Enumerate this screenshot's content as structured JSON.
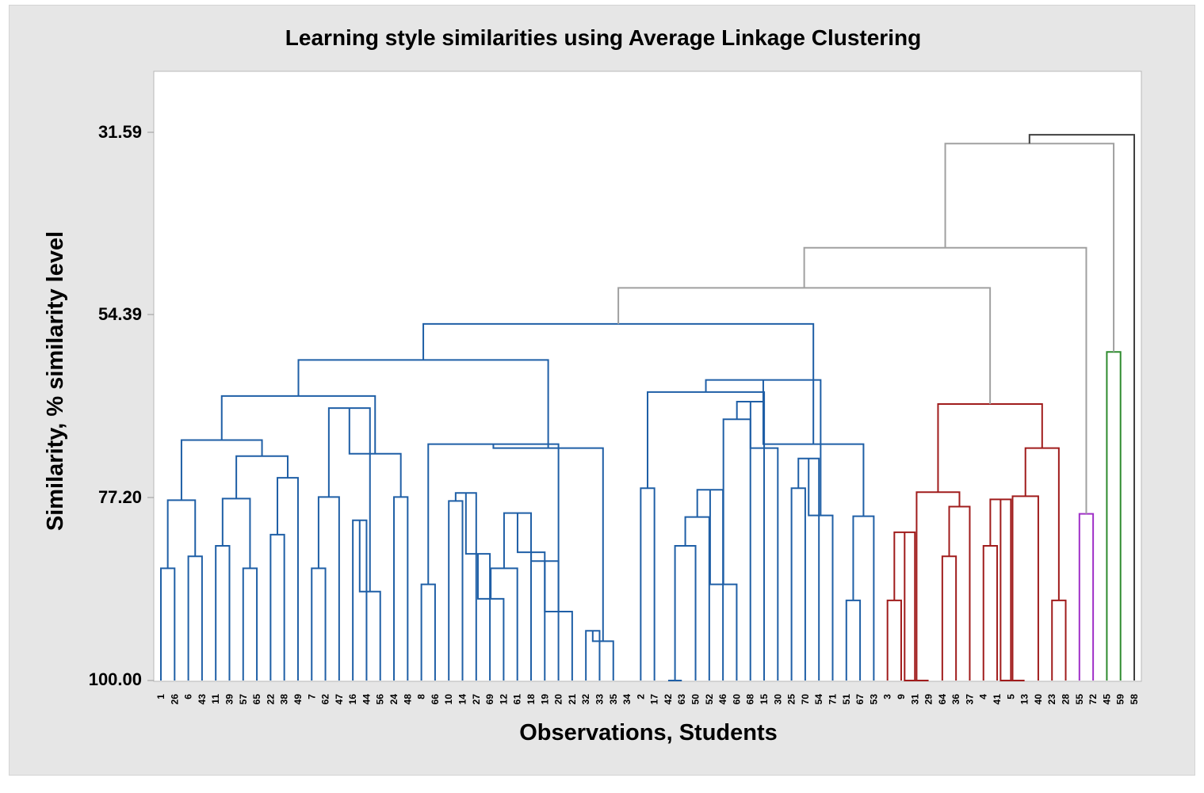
{
  "chart_data": {
    "type": "dendrogram",
    "title": "Learning style similarities using Average Linkage Clustering",
    "xlabel": "Observations, Students",
    "ylabel": "Similarity, % similarity level",
    "ylim": [
      100.0,
      31.59
    ],
    "yticks": [
      "31.59",
      "54.39",
      "77.20",
      "100.00"
    ],
    "leaves": [
      "1",
      "26",
      "6",
      "43",
      "11",
      "39",
      "57",
      "65",
      "22",
      "38",
      "49",
      "7",
      "62",
      "47",
      "16",
      "44",
      "56",
      "24",
      "48",
      "8",
      "66",
      "10",
      "14",
      "27",
      "69",
      "12",
      "61",
      "18",
      "19",
      "20",
      "21",
      "32",
      "33",
      "35",
      "34",
      "2",
      "17",
      "42",
      "63",
      "50",
      "52",
      "46",
      "60",
      "68",
      "15",
      "30",
      "25",
      "70",
      "54",
      "71",
      "51",
      "67",
      "53",
      "3",
      "9",
      "31",
      "29",
      "64",
      "36",
      "37",
      "4",
      "41",
      "5",
      "13",
      "40",
      "23",
      "28",
      "55",
      "72",
      "45",
      "59",
      "58"
    ],
    "colors": {
      "blue": "#1f5fa6",
      "red": "#a01c1c",
      "purple": "#a030c8",
      "green": "#2e8b2e",
      "gray": "#a0a0a0",
      "dark": "#404040"
    },
    "merges": [
      {
        "left": "1",
        "right": "26",
        "similarity": 86.0,
        "color": "blue"
      },
      {
        "left": "6",
        "right": "43",
        "similarity": 84.5,
        "color": "blue"
      },
      {
        "left": "11",
        "right": "39",
        "similarity": 83.2,
        "color": "blue"
      },
      {
        "left": "57",
        "right": "65",
        "similarity": 86.0,
        "color": "blue"
      },
      {
        "left": "22",
        "right": "38",
        "similarity": 81.8,
        "color": "blue"
      },
      {
        "left": "38",
        "right": "49",
        "similarity": 74.7,
        "color": "blue"
      },
      {
        "left": "7",
        "right": "62",
        "similarity": 86.0,
        "color": "blue"
      },
      {
        "left": "62",
        "right": "47",
        "similarity": 77.1,
        "color": "blue"
      },
      {
        "left": "16",
        "right": "44",
        "similarity": 80.0,
        "color": "blue"
      },
      {
        "left": "44",
        "right": "56",
        "similarity": 88.9,
        "color": "blue"
      },
      {
        "left": "24",
        "right": "48",
        "similarity": 77.1,
        "color": "blue"
      },
      {
        "left": "8",
        "right": "66",
        "similarity": 88.0,
        "color": "blue"
      },
      {
        "left": "10",
        "right": "14",
        "similarity": 77.6,
        "color": "blue"
      },
      {
        "left": "14",
        "right": "27",
        "similarity": 76.6,
        "color": "blue"
      },
      {
        "left": "27",
        "right": "69",
        "similarity": 84.2,
        "color": "blue"
      },
      {
        "left": "69",
        "right": "12",
        "similarity": 89.8,
        "color": "blue"
      },
      {
        "left": "12",
        "right": "61",
        "similarity": 86.0,
        "color": "blue"
      },
      {
        "left": "61",
        "right": "18",
        "similarity": 79.1,
        "color": "blue"
      },
      {
        "left": "18",
        "right": "19",
        "similarity": 84.0,
        "color": "blue"
      },
      {
        "left": "19",
        "right": "20",
        "similarity": 85.1,
        "color": "blue"
      },
      {
        "left": "20",
        "right": "21",
        "similarity": 91.4,
        "color": "blue"
      },
      {
        "left": "32",
        "right": "33",
        "similarity": 93.8,
        "color": "blue"
      },
      {
        "left": "33",
        "right": "35",
        "similarity": 95.1,
        "color": "blue"
      },
      {
        "left": "2",
        "right": "17",
        "similarity": 76.0,
        "color": "blue"
      },
      {
        "left": "42",
        "right": "63",
        "similarity": 100.0,
        "color": "blue"
      },
      {
        "left": "63",
        "right": "50",
        "similarity": 83.2,
        "color": "blue"
      },
      {
        "left": "50",
        "right": "52",
        "similarity": 79.6,
        "color": "blue"
      },
      {
        "left": "52",
        "right": "46",
        "similarity": 76.2,
        "color": "blue"
      },
      {
        "left": "46",
        "right": "60",
        "similarity": 88.0,
        "color": "blue"
      },
      {
        "left": "60",
        "right": "68",
        "similarity": 67.4,
        "color": "blue"
      },
      {
        "left": "68",
        "right": "15",
        "similarity": 65.2,
        "color": "blue"
      },
      {
        "left": "15",
        "right": "30",
        "similarity": 71.0,
        "color": "blue"
      },
      {
        "left": "25",
        "right": "70",
        "similarity": 76.0,
        "color": "blue"
      },
      {
        "left": "70",
        "right": "54",
        "similarity": 72.3,
        "color": "blue"
      },
      {
        "left": "54",
        "right": "71",
        "similarity": 79.4,
        "color": "blue"
      },
      {
        "left": "51",
        "right": "67",
        "similarity": 90.0,
        "color": "blue"
      },
      {
        "left": "67",
        "right": "53",
        "similarity": 79.5,
        "color": "blue"
      },
      {
        "left": "3",
        "right": "9",
        "similarity": 90.0,
        "color": "red"
      },
      {
        "left": "9",
        "right": "31",
        "similarity": 81.5,
        "color": "red"
      },
      {
        "left": "31",
        "right": "29",
        "similarity": 100.0,
        "color": "red"
      },
      {
        "left": "64",
        "right": "36",
        "similarity": 84.5,
        "color": "red"
      },
      {
        "left": "36",
        "right": "37",
        "similarity": 78.3,
        "color": "red"
      },
      {
        "left": "4",
        "right": "41",
        "similarity": 83.2,
        "color": "red"
      },
      {
        "left": "41",
        "right": "5",
        "similarity": 77.4,
        "color": "red"
      },
      {
        "left": "5",
        "right": "13",
        "similarity": 100.0,
        "color": "red"
      },
      {
        "left": "13",
        "right": "40",
        "similarity": 77.0,
        "color": "red"
      },
      {
        "left": "23",
        "right": "28",
        "similarity": 90.0,
        "color": "red"
      },
      {
        "left": "55",
        "right": "72",
        "similarity": 79.2,
        "color": "purple"
      },
      {
        "left": "45",
        "right": "59",
        "similarity": 59.0,
        "color": "green"
      }
    ],
    "grid": false
  }
}
